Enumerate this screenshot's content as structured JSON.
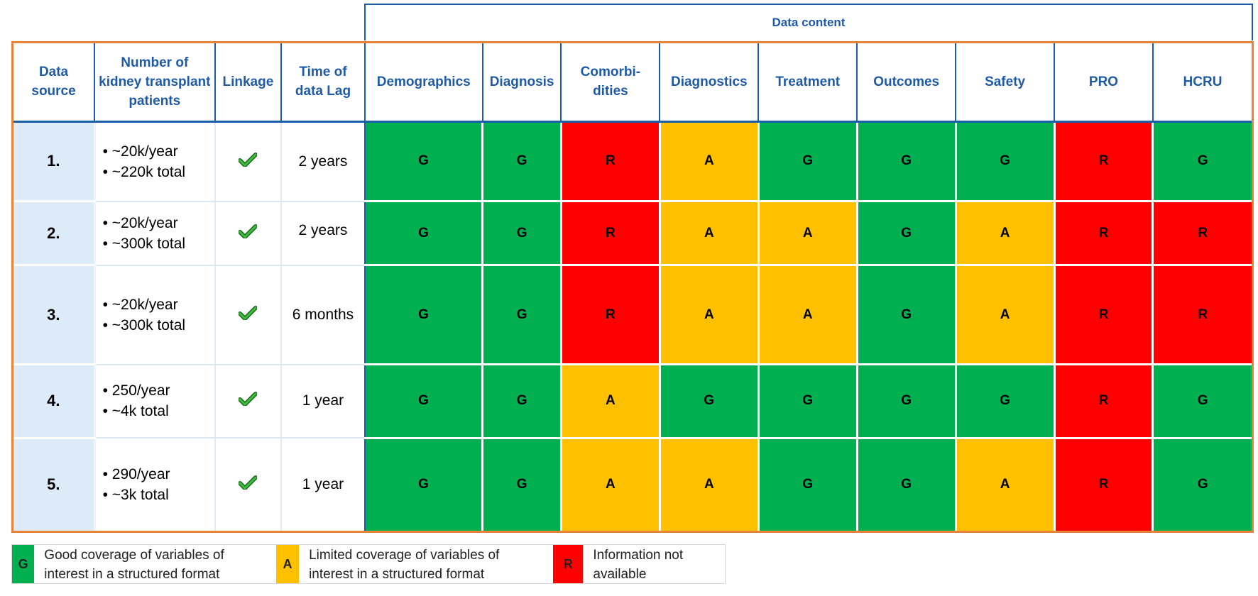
{
  "group_header": "Data content",
  "headers": [
    "Data source",
    "Number of kidney transplant patients",
    "Linkage",
    "Time of data Lag",
    "Demographics",
    "Diagnosis",
    "Comorbi-dities",
    "Diagnostics",
    "Treatment",
    "Outcomes",
    "Safety",
    "PRO",
    "HCRU"
  ],
  "rows": [
    {
      "source": "1.",
      "patients": [
        "~20k/year",
        "~220k total"
      ],
      "lag": "2 years",
      "ratings": [
        "G",
        "G",
        "R",
        "A",
        "G",
        "G",
        "G",
        "R",
        "G"
      ]
    },
    {
      "source": "2.",
      "patients": [
        "~20k/year",
        "~300k total"
      ],
      "lag": "2 years",
      "ratings": [
        "G",
        "G",
        "R",
        "A",
        "A",
        "G",
        "A",
        "R",
        "R"
      ]
    },
    {
      "source": "3.",
      "patients": [
        "~20k/year",
        "~300k total"
      ],
      "lag": "6 months",
      "ratings": [
        "G",
        "G",
        "R",
        "A",
        "A",
        "G",
        "A",
        "R",
        "R"
      ]
    },
    {
      "source": "4.",
      "patients": [
        "250/year",
        "~4k total"
      ],
      "lag": "1 year",
      "ratings": [
        "G",
        "G",
        "A",
        "G",
        "G",
        "G",
        "G",
        "R",
        "G"
      ]
    },
    {
      "source": "5.",
      "patients": [
        "290/year",
        "~3k total"
      ],
      "lag": "1 year",
      "ratings": [
        "G",
        "G",
        "A",
        "A",
        "G",
        "G",
        "A",
        "R",
        "G"
      ]
    }
  ],
  "legend": [
    {
      "code": "G",
      "text": "Good coverage of variables of interest in a structured format"
    },
    {
      "code": "A",
      "text": "Limited coverage of variables of interest in a structured format"
    },
    {
      "code": "R",
      "text": "Information not available"
    }
  ],
  "colors": {
    "G": "#00b050",
    "A": "#ffc000",
    "R": "#ff0000",
    "header_text": "#1f5aa6",
    "outline": "#e8833a"
  },
  "icons": {
    "linkage": "check-icon"
  }
}
